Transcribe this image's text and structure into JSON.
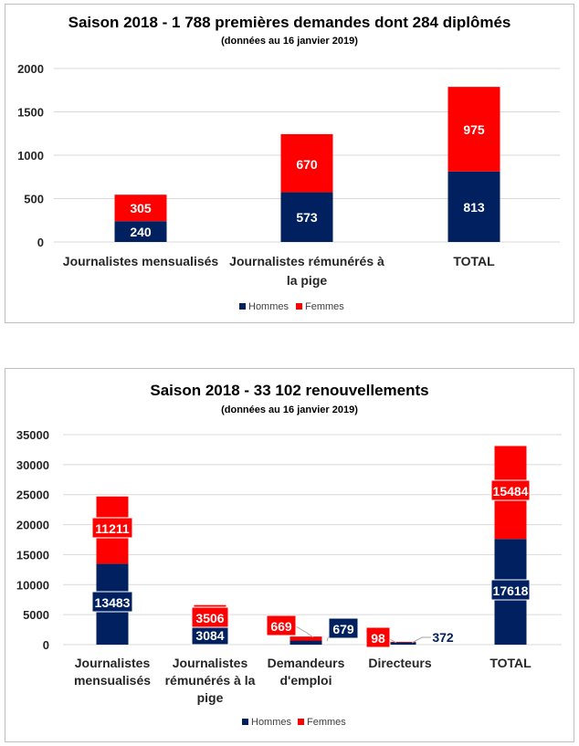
{
  "colors": {
    "hommes": "#002060",
    "femmes": "#ff0000",
    "grid": "#d9d9d9"
  },
  "chart_data": [
    {
      "type": "bar",
      "stacked": true,
      "title": "Saison 2018 - 1 788 premières demandes dont 284 diplômés",
      "subtitle": "(données au 16 janvier 2019)",
      "categories": [
        [
          "Journalistes mensualisés"
        ],
        [
          "Journalistes rémunérés à",
          "la pige"
        ],
        [
          "TOTAL"
        ]
      ],
      "series": [
        {
          "name": "Hommes",
          "values": [
            240,
            573,
            813
          ]
        },
        {
          "name": "Femmes",
          "values": [
            305,
            670,
            975
          ]
        }
      ],
      "ylim": [
        0,
        2000
      ],
      "yticks": [
        0,
        500,
        1000,
        1500,
        2000
      ],
      "grid": true,
      "legend": "bottom"
    },
    {
      "type": "bar",
      "stacked": true,
      "title": "Saison 2018 - 33 102 renouvellements",
      "subtitle": "(données au 16 janvier 2019)",
      "categories": [
        [
          "Journalistes",
          "mensualisés"
        ],
        [
          "Journalistes",
          "rémunérés à la",
          "pige"
        ],
        [
          "Demandeurs",
          "d'emploi"
        ],
        [
          "Directeurs"
        ],
        [
          "TOTAL"
        ]
      ],
      "series": [
        {
          "name": "Hommes",
          "values": [
            13483,
            3084,
            679,
            372,
            17618
          ]
        },
        {
          "name": "Femmes",
          "values": [
            11211,
            3506,
            669,
            98,
            15484
          ]
        }
      ],
      "ylim": [
        0,
        35000
      ],
      "yticks": [
        0,
        5000,
        10000,
        15000,
        20000,
        25000,
        30000,
        35000
      ],
      "grid": true,
      "legend": "bottom"
    }
  ]
}
